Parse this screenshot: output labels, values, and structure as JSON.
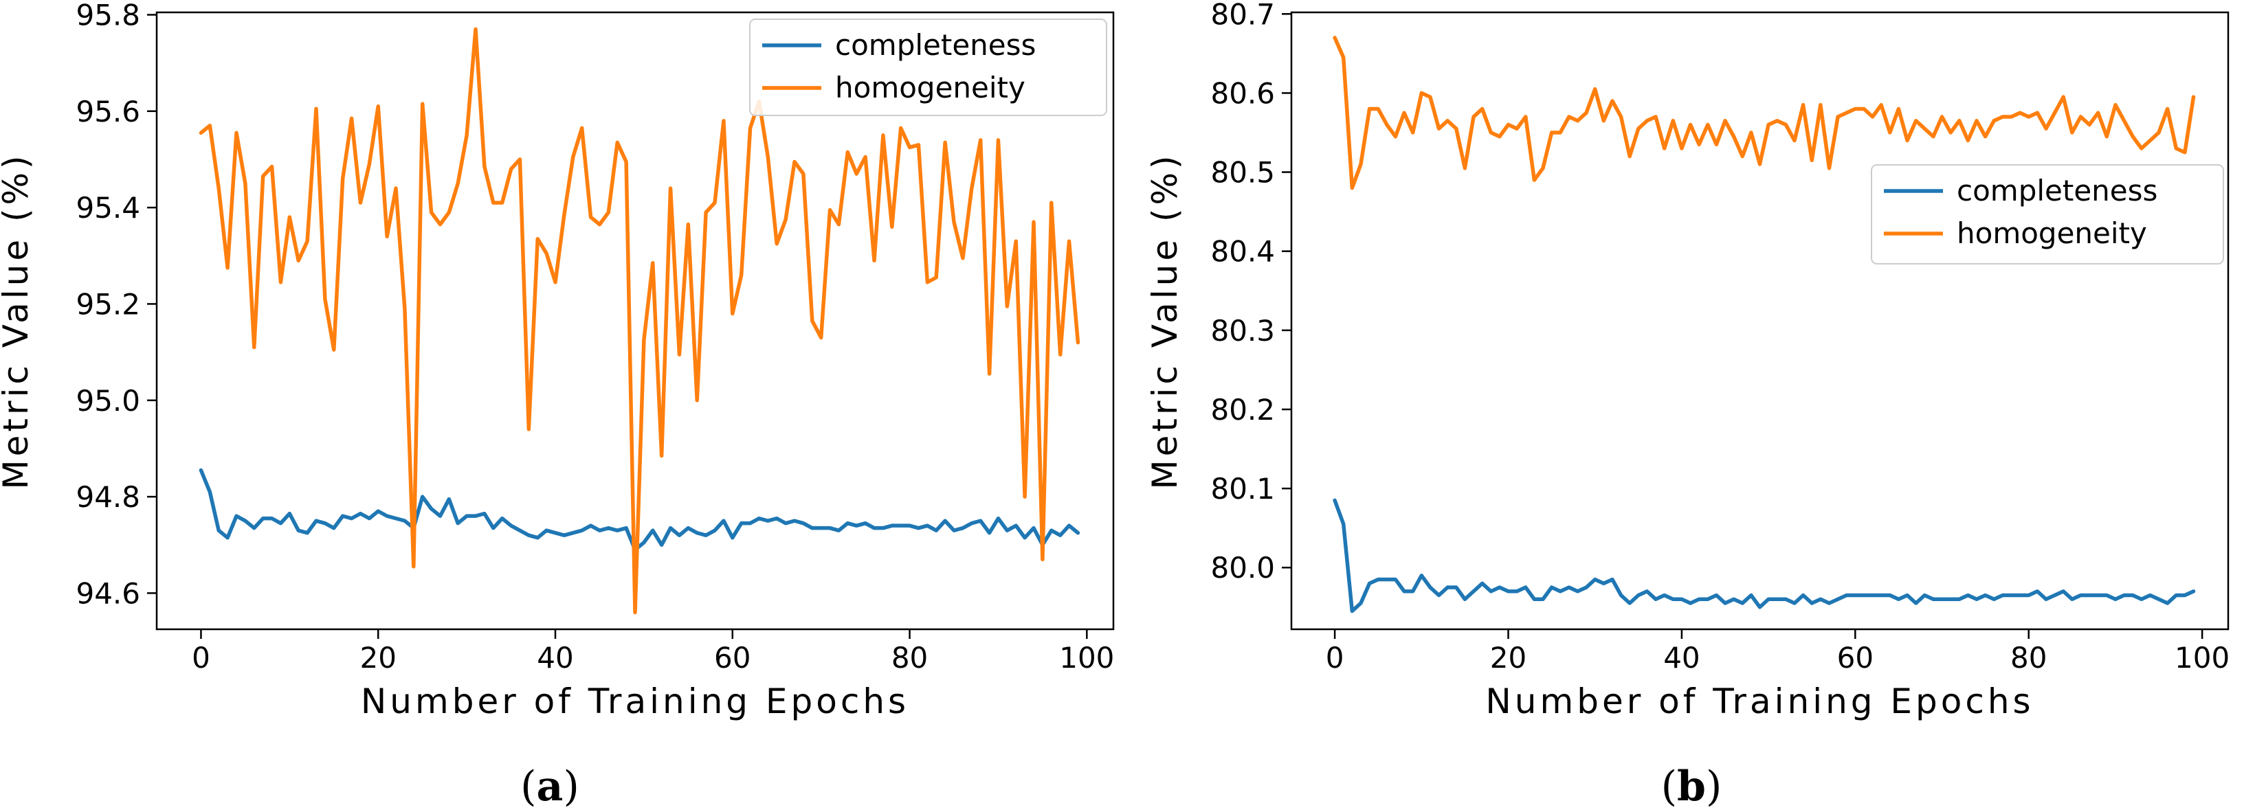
{
  "chart_data": [
    {
      "type": "line",
      "title": "",
      "panel_label_open": "(",
      "panel_label_letter": "a",
      "panel_label_close": ")",
      "xlabel": "Number of Training Epochs",
      "ylabel": "Metric Value (%)",
      "xlim": [
        -5,
        103
      ],
      "ylim": [
        94.525,
        95.805
      ],
      "xticks": [
        0,
        20,
        40,
        60,
        80,
        100
      ],
      "xtick_labels": [
        "0",
        "20",
        "40",
        "60",
        "80",
        "100"
      ],
      "yticks": [
        94.6,
        94.8,
        95.0,
        95.2,
        95.4,
        95.6,
        95.8
      ],
      "ytick_labels": [
        "94.6",
        "94.8",
        "95.0",
        "95.2",
        "95.4",
        "95.6",
        "95.8"
      ],
      "legend_position": "top-right",
      "series": [
        {
          "name": "completeness",
          "color": "#1f77b4",
          "x": [
            0,
            1,
            2,
            3,
            4,
            5,
            6,
            7,
            8,
            9,
            10,
            11,
            12,
            13,
            14,
            15,
            16,
            17,
            18,
            19,
            20,
            21,
            22,
            23,
            24,
            25,
            26,
            27,
            28,
            29,
            30,
            31,
            32,
            33,
            34,
            35,
            36,
            37,
            38,
            39,
            40,
            41,
            42,
            43,
            44,
            45,
            46,
            47,
            48,
            49,
            50,
            51,
            52,
            53,
            54,
            55,
            56,
            57,
            58,
            59,
            60,
            61,
            62,
            63,
            64,
            65,
            66,
            67,
            68,
            69,
            70,
            71,
            72,
            73,
            74,
            75,
            76,
            77,
            78,
            79,
            80,
            81,
            82,
            83,
            84,
            85,
            86,
            87,
            88,
            89,
            90,
            91,
            92,
            93,
            94,
            95,
            96,
            97,
            98,
            99
          ],
          "values": [
            94.855,
            94.81,
            94.73,
            94.715,
            94.76,
            94.75,
            94.735,
            94.755,
            94.755,
            94.745,
            94.765,
            94.73,
            94.725,
            94.75,
            94.745,
            94.735,
            94.76,
            94.755,
            94.765,
            94.755,
            94.77,
            94.76,
            94.755,
            94.75,
            94.735,
            94.8,
            94.775,
            94.76,
            94.795,
            94.745,
            94.76,
            94.76,
            94.765,
            94.735,
            94.755,
            94.74,
            94.73,
            94.72,
            94.715,
            94.73,
            94.725,
            94.72,
            94.725,
            94.73,
            94.74,
            94.73,
            94.735,
            94.73,
            94.735,
            94.69,
            94.705,
            94.73,
            94.7,
            94.735,
            94.72,
            94.735,
            94.725,
            94.72,
            94.73,
            94.75,
            94.715,
            94.745,
            94.745,
            94.755,
            94.75,
            94.755,
            94.745,
            94.75,
            94.745,
            94.735,
            94.735,
            94.735,
            94.73,
            94.745,
            94.74,
            94.745,
            94.735,
            94.735,
            94.74,
            94.74,
            94.74,
            94.735,
            94.74,
            94.73,
            94.75,
            94.73,
            94.735,
            94.745,
            94.75,
            94.725,
            94.755,
            94.73,
            94.74,
            94.715,
            94.735,
            94.7,
            94.73,
            94.72,
            94.74,
            94.725
          ]
        },
        {
          "name": "homogeneity",
          "color": "#ff7f0e",
          "x": [
            0,
            1,
            2,
            3,
            4,
            5,
            6,
            7,
            8,
            9,
            10,
            11,
            12,
            13,
            14,
            15,
            16,
            17,
            18,
            19,
            20,
            21,
            22,
            23,
            24,
            25,
            26,
            27,
            28,
            29,
            30,
            31,
            32,
            33,
            34,
            35,
            36,
            37,
            38,
            39,
            40,
            41,
            42,
            43,
            44,
            45,
            46,
            47,
            48,
            49,
            50,
            51,
            52,
            53,
            54,
            55,
            56,
            57,
            58,
            59,
            60,
            61,
            62,
            63,
            64,
            65,
            66,
            67,
            68,
            69,
            70,
            71,
            72,
            73,
            74,
            75,
            76,
            77,
            78,
            79,
            80,
            81,
            82,
            83,
            84,
            85,
            86,
            87,
            88,
            89,
            90,
            91,
            92,
            93,
            94,
            95,
            96,
            97,
            98,
            99
          ],
          "values": [
            95.555,
            95.57,
            95.44,
            95.275,
            95.555,
            95.45,
            95.11,
            95.465,
            95.485,
            95.245,
            95.38,
            95.29,
            95.33,
            95.605,
            95.21,
            95.105,
            95.46,
            95.585,
            95.41,
            95.49,
            95.61,
            95.34,
            95.44,
            95.19,
            94.655,
            95.615,
            95.39,
            95.365,
            95.39,
            95.45,
            95.55,
            95.77,
            95.485,
            95.41,
            95.41,
            95.48,
            95.5,
            94.94,
            95.335,
            95.305,
            95.245,
            95.385,
            95.505,
            95.565,
            95.38,
            95.365,
            95.39,
            95.535,
            95.495,
            94.56,
            95.125,
            95.285,
            94.885,
            95.44,
            95.095,
            95.365,
            95.0,
            95.39,
            95.41,
            95.58,
            95.18,
            95.26,
            95.565,
            95.62,
            95.505,
            95.325,
            95.375,
            95.495,
            95.47,
            95.165,
            95.13,
            95.395,
            95.365,
            95.515,
            95.47,
            95.505,
            95.29,
            95.55,
            95.36,
            95.565,
            95.525,
            95.53,
            95.245,
            95.255,
            95.535,
            95.37,
            95.295,
            95.44,
            95.54,
            95.055,
            95.54,
            95.195,
            95.33,
            94.8,
            95.37,
            94.67,
            95.41,
            95.095,
            95.33,
            95.12
          ]
        }
      ]
    },
    {
      "type": "line",
      "title": "",
      "panel_label_open": "(",
      "panel_label_letter": "b",
      "panel_label_close": ")",
      "xlabel": "Number of Training Epochs",
      "ylabel": "Metric Value (%)",
      "xlim": [
        -5,
        103
      ],
      "ylim": [
        79.922,
        80.702
      ],
      "xticks": [
        0,
        20,
        40,
        60,
        80,
        100
      ],
      "xtick_labels": [
        "0",
        "20",
        "40",
        "60",
        "80",
        "100"
      ],
      "yticks": [
        80.0,
        80.1,
        80.2,
        80.3,
        80.4,
        80.5,
        80.6,
        80.7
      ],
      "ytick_labels": [
        "80.0",
        "80.1",
        "80.2",
        "80.3",
        "80.4",
        "80.5",
        "80.6",
        "80.7"
      ],
      "legend_position": "center-right",
      "series": [
        {
          "name": "completeness",
          "color": "#1f77b4",
          "x": [
            0,
            1,
            2,
            3,
            4,
            5,
            6,
            7,
            8,
            9,
            10,
            11,
            12,
            13,
            14,
            15,
            16,
            17,
            18,
            19,
            20,
            21,
            22,
            23,
            24,
            25,
            26,
            27,
            28,
            29,
            30,
            31,
            32,
            33,
            34,
            35,
            36,
            37,
            38,
            39,
            40,
            41,
            42,
            43,
            44,
            45,
            46,
            47,
            48,
            49,
            50,
            51,
            52,
            53,
            54,
            55,
            56,
            57,
            58,
            59,
            60,
            61,
            62,
            63,
            64,
            65,
            66,
            67,
            68,
            69,
            70,
            71,
            72,
            73,
            74,
            75,
            76,
            77,
            78,
            79,
            80,
            81,
            82,
            83,
            84,
            85,
            86,
            87,
            88,
            89,
            90,
            91,
            92,
            93,
            94,
            95,
            96,
            97,
            98,
            99
          ],
          "values": [
            80.085,
            80.055,
            79.945,
            79.955,
            79.98,
            79.985,
            79.985,
            79.985,
            79.97,
            79.97,
            79.99,
            79.975,
            79.965,
            79.975,
            79.975,
            79.96,
            79.97,
            79.98,
            79.97,
            79.975,
            79.97,
            79.97,
            79.975,
            79.96,
            79.96,
            79.975,
            79.97,
            79.975,
            79.97,
            79.975,
            79.985,
            79.98,
            79.985,
            79.965,
            79.955,
            79.965,
            79.97,
            79.96,
            79.965,
            79.96,
            79.96,
            79.955,
            79.96,
            79.96,
            79.965,
            79.955,
            79.96,
            79.955,
            79.965,
            79.95,
            79.96,
            79.96,
            79.96,
            79.955,
            79.965,
            79.955,
            79.96,
            79.955,
            79.96,
            79.965,
            79.965,
            79.965,
            79.965,
            79.965,
            79.965,
            79.96,
            79.965,
            79.955,
            79.965,
            79.96,
            79.96,
            79.96,
            79.96,
            79.965,
            79.96,
            79.965,
            79.96,
            79.965,
            79.965,
            79.965,
            79.965,
            79.97,
            79.96,
            79.965,
            79.97,
            79.96,
            79.965,
            79.965,
            79.965,
            79.965,
            79.96,
            79.965,
            79.965,
            79.96,
            79.965,
            79.96,
            79.955,
            79.965,
            79.965,
            79.97
          ]
        },
        {
          "name": "homogeneity",
          "color": "#ff7f0e",
          "x": [
            0,
            1,
            2,
            3,
            4,
            5,
            6,
            7,
            8,
            9,
            10,
            11,
            12,
            13,
            14,
            15,
            16,
            17,
            18,
            19,
            20,
            21,
            22,
            23,
            24,
            25,
            26,
            27,
            28,
            29,
            30,
            31,
            32,
            33,
            34,
            35,
            36,
            37,
            38,
            39,
            40,
            41,
            42,
            43,
            44,
            45,
            46,
            47,
            48,
            49,
            50,
            51,
            52,
            53,
            54,
            55,
            56,
            57,
            58,
            59,
            60,
            61,
            62,
            63,
            64,
            65,
            66,
            67,
            68,
            69,
            70,
            71,
            72,
            73,
            74,
            75,
            76,
            77,
            78,
            79,
            80,
            81,
            82,
            83,
            84,
            85,
            86,
            87,
            88,
            89,
            90,
            91,
            92,
            93,
            94,
            95,
            96,
            97,
            98,
            99
          ],
          "values": [
            80.67,
            80.645,
            80.48,
            80.51,
            80.58,
            80.58,
            80.56,
            80.545,
            80.575,
            80.55,
            80.6,
            80.595,
            80.555,
            80.565,
            80.555,
            80.505,
            80.57,
            80.58,
            80.55,
            80.545,
            80.56,
            80.555,
            80.57,
            80.49,
            80.505,
            80.55,
            80.55,
            80.57,
            80.565,
            80.575,
            80.605,
            80.565,
            80.59,
            80.57,
            80.52,
            80.555,
            80.565,
            80.57,
            80.53,
            80.565,
            80.53,
            80.56,
            80.535,
            80.56,
            80.535,
            80.565,
            80.545,
            80.52,
            80.55,
            80.51,
            80.56,
            80.565,
            80.56,
            80.54,
            80.585,
            80.515,
            80.585,
            80.505,
            80.57,
            80.575,
            80.58,
            80.58,
            80.57,
            80.585,
            80.55,
            80.58,
            80.54,
            80.565,
            80.555,
            80.545,
            80.57,
            80.55,
            80.565,
            80.54,
            80.565,
            80.545,
            80.565,
            80.57,
            80.57,
            80.575,
            80.57,
            80.575,
            80.555,
            80.575,
            80.595,
            80.55,
            80.57,
            80.56,
            80.575,
            80.545,
            80.585,
            80.565,
            80.545,
            80.53,
            80.54,
            80.55,
            80.58,
            80.53,
            80.525,
            80.595
          ]
        }
      ]
    }
  ]
}
